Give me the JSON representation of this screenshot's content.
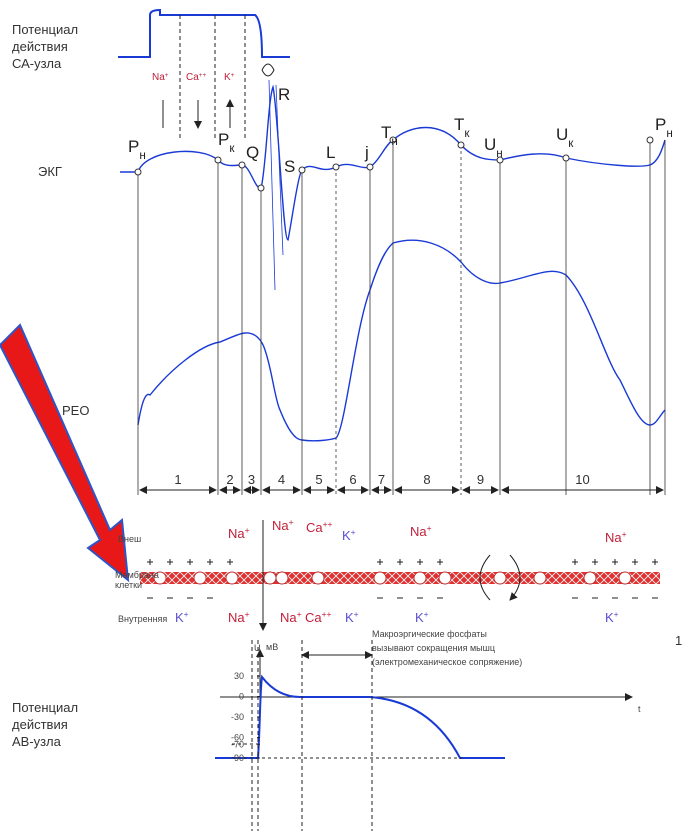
{
  "sa_node": {
    "label_lines": [
      "Потенциал",
      "действия",
      "СА-узла"
    ],
    "ions": [
      {
        "ion": "Na",
        "charge": "+"
      },
      {
        "ion": "Ca",
        "charge": "++"
      },
      {
        "ion": "K",
        "charge": "+"
      }
    ]
  },
  "ecg": {
    "label": "ЭКГ",
    "points": [
      {
        "letter": "P",
        "sub": "н"
      },
      {
        "letter": "P",
        "sub": "к"
      },
      {
        "letter": "Q",
        "sub": ""
      },
      {
        "letter": "R",
        "sub": ""
      },
      {
        "letter": "S",
        "sub": ""
      },
      {
        "letter": "L",
        "sub": ""
      },
      {
        "letter": "j",
        "sub": ""
      },
      {
        "letter": "T",
        "sub": "н"
      },
      {
        "letter": "T",
        "sub": "к"
      },
      {
        "letter": "U",
        "sub": "н"
      },
      {
        "letter": "U",
        "sub": "к"
      },
      {
        "letter": "P",
        "sub": "н"
      }
    ]
  },
  "reo": {
    "label": "РЕО"
  },
  "intervals": [
    "1",
    "2",
    "3",
    "4",
    "5",
    "6",
    "7",
    "8",
    "9",
    "10"
  ],
  "membrane": {
    "outer": "Внеш",
    "membrane_lines": [
      "Мембрана",
      "клетки"
    ],
    "inner": "Внутренняя",
    "ions_top": [
      {
        "ion": "Na",
        "charge": "+"
      },
      {
        "ion": "Na",
        "charge": "+"
      },
      {
        "ion": "Ca",
        "charge": "++"
      },
      {
        "ion": "K",
        "charge": "+"
      },
      {
        "ion": "Na",
        "charge": "+"
      },
      {
        "ion": "Na",
        "charge": "+"
      }
    ],
    "ions_bottom": [
      {
        "ion": "K",
        "charge": "+"
      },
      {
        "ion": "Na",
        "charge": "+"
      },
      {
        "ion": "Na",
        "charge": "+"
      },
      {
        "ion": "Ca",
        "charge": "++"
      },
      {
        "ion": "K",
        "charge": "+"
      },
      {
        "ion": "K",
        "charge": "+"
      },
      {
        "ion": "K",
        "charge": "+"
      }
    ],
    "note_lines": [
      "Макроэргические фосфаты",
      "вызывают сокращения мышц",
      "(электромеханическое сопряжение)"
    ],
    "page_number": "1"
  },
  "av_node": {
    "y_label": "U",
    "unit": "мВ",
    "yticks": [
      30,
      0,
      -30,
      -60,
      -70,
      -90
    ],
    "x_label": "t",
    "label_lines": [
      "Потенциал",
      "действия",
      "АВ-узла"
    ]
  }
}
